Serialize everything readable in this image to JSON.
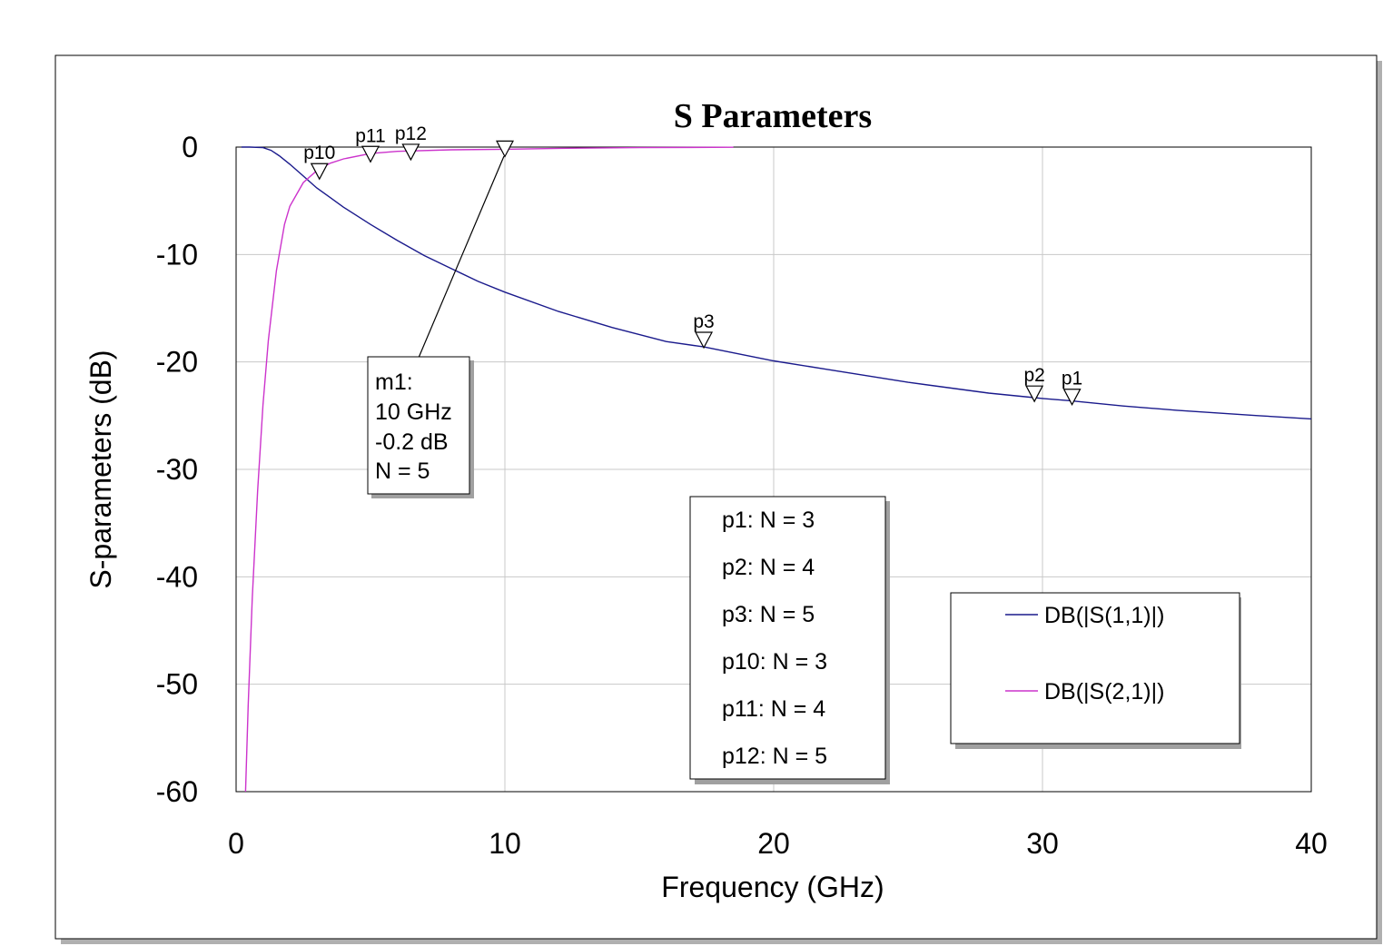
{
  "chart_data": {
    "type": "line",
    "title": "S Parameters",
    "xlabel": "Frequency (GHz)",
    "ylabel": "S-parameters (dB)",
    "xlim": [
      0,
      40
    ],
    "ylim": [
      -60,
      0
    ],
    "xticks": [
      "0",
      "10",
      "20",
      "30",
      "40"
    ],
    "yticks": [
      "0",
      "-10",
      "-20",
      "-30",
      "-40",
      "-50",
      "-60"
    ],
    "xtick_values": [
      0,
      10,
      20,
      30,
      40
    ],
    "ytick_values": [
      0,
      -10,
      -20,
      -30,
      -40,
      -50,
      -60
    ],
    "grid": true,
    "legend_position": "bottom-right",
    "series": [
      {
        "name": "DB(|S(1,1)|)",
        "color": "#1a1a8c",
        "x": [
          0.2,
          0.5,
          1.0,
          1.3,
          1.6,
          2.0,
          2.5,
          3.0,
          3.5,
          4.0,
          5.0,
          6.0,
          7.0,
          8.0,
          9.0,
          10.0,
          12.0,
          14.0,
          16.0,
          17.4,
          20.0,
          22.0,
          25.0,
          28.0,
          30.0,
          31.0,
          33.0,
          35.0,
          38.0,
          40.0
        ],
        "y": [
          0,
          0,
          -0.05,
          -0.3,
          -0.8,
          -1.6,
          -2.7,
          -3.8,
          -4.7,
          -5.6,
          -7.2,
          -8.7,
          -10.1,
          -11.3,
          -12.5,
          -13.5,
          -15.3,
          -16.8,
          -18.1,
          -18.6,
          -19.9,
          -20.7,
          -21.9,
          -22.9,
          -23.4,
          -23.6,
          -24.1,
          -24.5,
          -25.0,
          -25.3
        ]
      },
      {
        "name": "DB(|S(2,1)|)",
        "color": "#cc33cc",
        "x": [
          0.35,
          0.45,
          0.6,
          0.8,
          1.0,
          1.2,
          1.5,
          1.8,
          2.0,
          2.5,
          3.0,
          3.5,
          4.0,
          5.0,
          6.0,
          8.0,
          10.0,
          12.0,
          15.0,
          18.5
        ],
        "y": [
          -60,
          -52,
          -42,
          -32,
          -24,
          -18,
          -11.5,
          -7.2,
          -5.5,
          -3.3,
          -2.2,
          -1.5,
          -1.1,
          -0.6,
          -0.4,
          -0.25,
          -0.2,
          -0.12,
          -0.05,
          -0.02
        ]
      }
    ],
    "markers": [
      {
        "label": "p1",
        "x": 31.1,
        "y": -23.3
      },
      {
        "label": "p2",
        "x": 29.7,
        "y": -23.0
      },
      {
        "label": "p3",
        "x": 17.4,
        "y": -18.0
      },
      {
        "label": "p10",
        "x": 3.1,
        "y": -2.3
      },
      {
        "label": "p11",
        "x": 5.0,
        "y": -0.7
      },
      {
        "label": "p12",
        "x": 6.5,
        "y": -0.5
      },
      {
        "label": "",
        "x": 10.0,
        "y": -0.2
      }
    ],
    "marker_box": {
      "lines": [
        "m1:",
        "10 GHz",
        "-0.2 dB",
        "N = 5"
      ]
    },
    "note_box": {
      "lines": [
        "p1: N = 3",
        "p2: N = 4",
        "p3: N = 5",
        "p10: N = 3",
        "p11: N = 4",
        "p12: N = 5"
      ]
    }
  }
}
